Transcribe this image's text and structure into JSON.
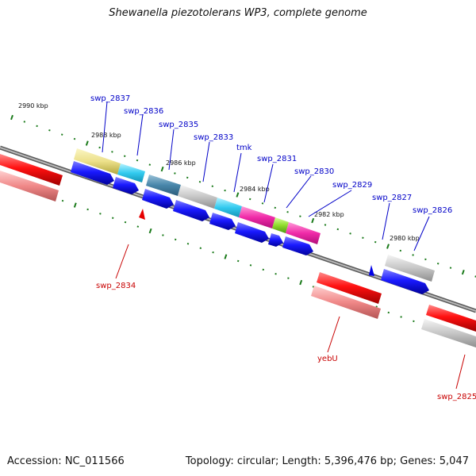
{
  "title": "Shewanella piezotolerans WP3, complete genome",
  "footer": {
    "accession": "Accession: NC_011566",
    "topology": "Topology: circular; Length: 5,396,476 bp; Genes: 5,047"
  },
  "scale_ticks": [
    {
      "label": "2990 kbp"
    },
    {
      "label": "2988 kbp"
    },
    {
      "label": "2986 kbp"
    },
    {
      "label": "2984 kbp"
    },
    {
      "label": "2982 kbp"
    },
    {
      "label": "2980 kbp"
    }
  ],
  "gene_labels_top": [
    "swp_2837",
    "swp_2836",
    "swp_2835",
    "swp_2833",
    "tmk",
    "swp_2831",
    "swp_2830",
    "swp_2829",
    "swp_2827",
    "swp_2826"
  ],
  "gene_labels_bottom": [
    "swp_2834",
    "yebU",
    "swp_2825"
  ],
  "colors": {
    "forward_strand": "#0000e6",
    "reverse_strand": "#e60000",
    "tick": "#1a7a1a",
    "backbone": "#888888"
  }
}
